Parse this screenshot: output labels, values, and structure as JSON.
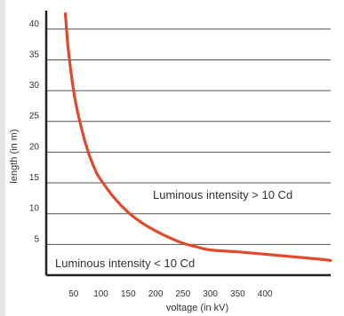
{
  "chart_data": {
    "type": "line",
    "title": "",
    "xlabel": "voltage (in kV)",
    "ylabel": "length (in m)",
    "xlim": [
      0,
      520
    ],
    "ylim": [
      0,
      43
    ],
    "x_ticks": [
      50,
      100,
      150,
      200,
      250,
      300,
      350,
      400
    ],
    "y_ticks": [
      5,
      10,
      15,
      20,
      25,
      30,
      35,
      40
    ],
    "grid": "horizontal",
    "series": [
      {
        "color": "#e04a2b",
        "x": [
          35,
          40,
          50,
          60,
          75,
          90,
          100,
          125,
          150,
          175,
          200,
          225,
          250,
          275,
          300,
          350,
          400,
          450,
          500,
          520
        ],
        "y": [
          42.5,
          37,
          30,
          25.5,
          20.5,
          17,
          15.5,
          12.5,
          10.2,
          8.5,
          7.2,
          6.1,
          5.2,
          4.6,
          4.1,
          3.8,
          3.4,
          3.0,
          2.6,
          2.4
        ]
      }
    ],
    "annotations": [
      {
        "text": "Luminous intensity > 10 Cd",
        "position": "upper-right"
      },
      {
        "text": "Luminous intensity < 10 Cd",
        "position": "lower-left"
      }
    ]
  }
}
